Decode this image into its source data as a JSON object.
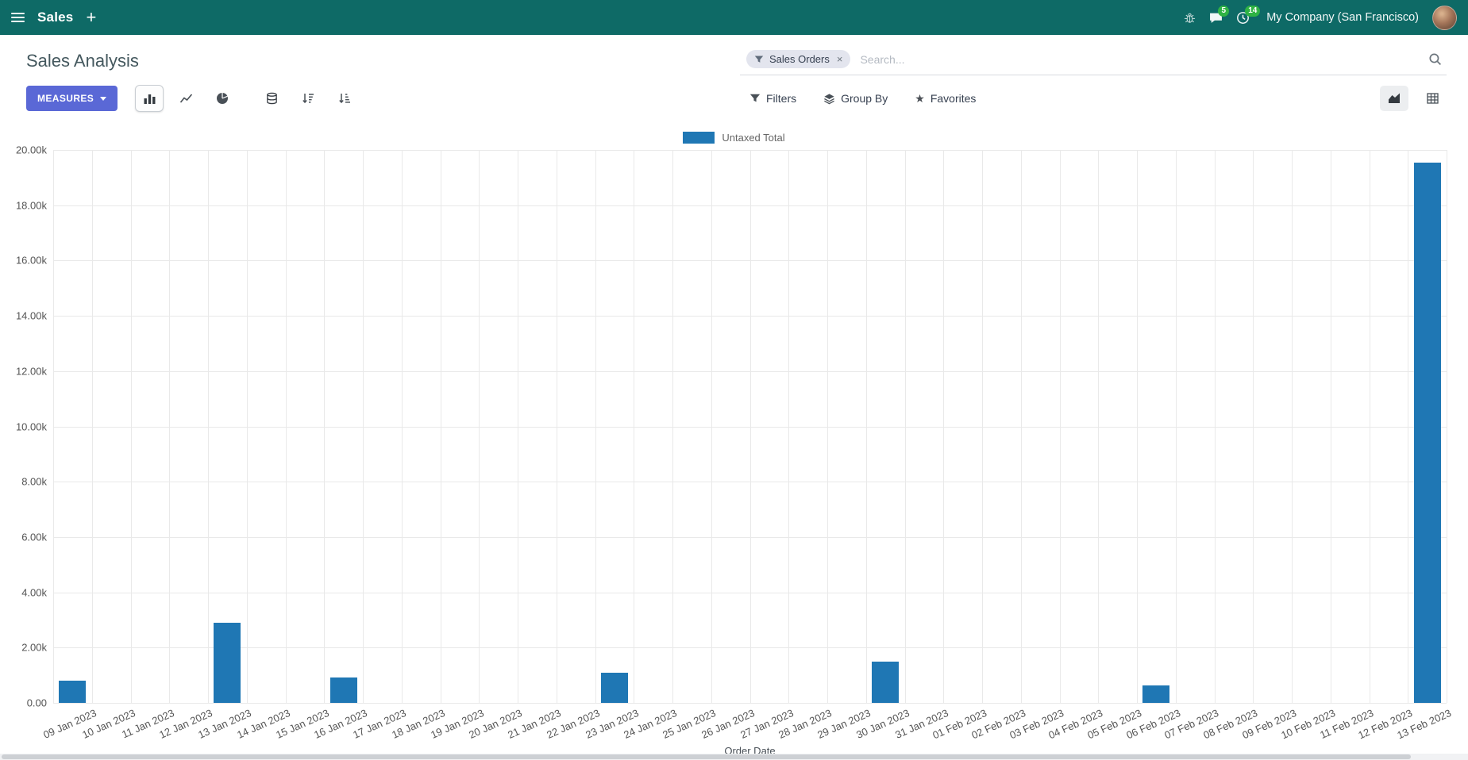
{
  "navbar": {
    "app_name": "Sales",
    "plus": "+",
    "messages_badge": "5",
    "activities_badge": "14",
    "company": "My Company (San Francisco)"
  },
  "control_panel": {
    "title": "Sales Analysis",
    "measures_label": "MEASURES",
    "filters_label": "Filters",
    "group_by_label": "Group By",
    "favorites_label": "Favorites",
    "favorites_icon": "★",
    "search": {
      "facet_label": "Sales Orders",
      "remove": "×",
      "placeholder": "Search..."
    }
  },
  "chart_data": {
    "type": "bar",
    "title": "",
    "legend": [
      {
        "label": "Untaxed Total",
        "color": "#1f77b4"
      }
    ],
    "xlabel": "Order Date",
    "ylabel": "",
    "ylim": [
      0,
      20000
    ],
    "grid": true,
    "legend_position": "top",
    "ytick_labels": [
      "0.00",
      "2.00k",
      "4.00k",
      "6.00k",
      "8.00k",
      "10.00k",
      "12.00k",
      "14.00k",
      "16.00k",
      "18.00k",
      "20.00k"
    ],
    "categories": [
      "09 Jan 2023",
      "10 Jan 2023",
      "11 Jan 2023",
      "12 Jan 2023",
      "13 Jan 2023",
      "14 Jan 2023",
      "15 Jan 2023",
      "16 Jan 2023",
      "17 Jan 2023",
      "18 Jan 2023",
      "19 Jan 2023",
      "20 Jan 2023",
      "21 Jan 2023",
      "22 Jan 2023",
      "23 Jan 2023",
      "24 Jan 2023",
      "25 Jan 2023",
      "26 Jan 2023",
      "27 Jan 2023",
      "28 Jan 2023",
      "29 Jan 2023",
      "30 Jan 2023",
      "31 Jan 2023",
      "01 Feb 2023",
      "02 Feb 2023",
      "03 Feb 2023",
      "04 Feb 2023",
      "05 Feb 2023",
      "06 Feb 2023",
      "07 Feb 2023",
      "08 Feb 2023",
      "09 Feb 2023",
      "10 Feb 2023",
      "11 Feb 2023",
      "12 Feb 2023",
      "13 Feb 2023"
    ],
    "series": [
      {
        "name": "Untaxed Total",
        "color": "#1f77b4",
        "values": [
          800,
          0,
          0,
          0,
          2900,
          0,
          0,
          910,
          0,
          0,
          0,
          0,
          0,
          0,
          1080,
          0,
          0,
          0,
          0,
          0,
          0,
          1490,
          0,
          0,
          0,
          0,
          0,
          0,
          620,
          0,
          0,
          0,
          0,
          0,
          0,
          19550
        ]
      }
    ]
  },
  "colors": {
    "navbar_bg": "#0e6a66",
    "primary_button": "#5a68d6",
    "badge": "#2fb344",
    "bar": "#1f77b4",
    "grid": "#e9e9e9"
  }
}
